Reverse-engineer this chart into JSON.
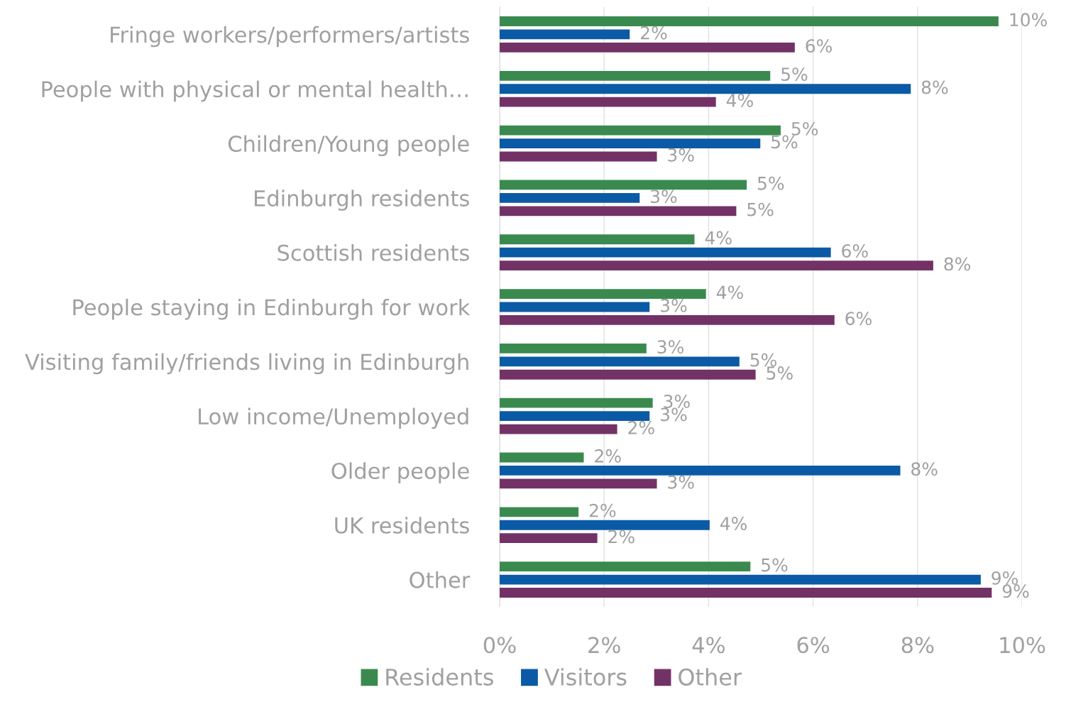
{
  "chart_data": {
    "type": "bar",
    "orientation": "horizontal",
    "categories": [
      "Fringe workers/performers/artists",
      "People with physical or mental health…",
      "Children/Young people",
      "Edinburgh residents",
      "Scottish residents",
      "People staying in Edinburgh for work",
      "Visiting family/friends living in Edinburgh",
      "Low income/Unemployed",
      "Older people",
      "UK residents",
      "Other"
    ],
    "series": [
      {
        "name": "Residents",
        "color": "#3a8a4f",
        "values": [
          9.55,
          5.18,
          5.38,
          4.73,
          3.73,
          3.95,
          2.81,
          2.93,
          1.61,
          1.51,
          4.8
        ],
        "value_labels": [
          "10%",
          "5%",
          "5%",
          "5%",
          "4%",
          "4%",
          "3%",
          "3%",
          "2%",
          "2%",
          "5%"
        ]
      },
      {
        "name": "Visitors",
        "color": "#0b5aa5",
        "values": [
          2.49,
          7.87,
          4.99,
          2.68,
          6.34,
          2.87,
          4.59,
          2.87,
          7.67,
          4.02,
          9.21
        ],
        "value_labels": [
          "2%",
          "8%",
          "5%",
          "3%",
          "6%",
          "3%",
          "5%",
          "3%",
          "8%",
          "4%",
          "9%"
        ]
      },
      {
        "name": "Other",
        "color": "#733266",
        "values": [
          5.65,
          4.14,
          3.01,
          4.53,
          8.3,
          6.41,
          4.9,
          2.25,
          3.01,
          1.87,
          9.42
        ],
        "value_labels": [
          "6%",
          "4%",
          "3%",
          "5%",
          "8%",
          "6%",
          "5%",
          "2%",
          "3%",
          "2%",
          "9%"
        ]
      }
    ],
    "xlim": [
      0,
      10
    ],
    "xticks": [
      {
        "value": 0,
        "label": "0%"
      },
      {
        "value": 2,
        "label": "2%"
      },
      {
        "value": 4,
        "label": "4%"
      },
      {
        "value": 6,
        "label": "6%"
      },
      {
        "value": 8,
        "label": "8%"
      },
      {
        "value": 10,
        "label": "10%"
      }
    ],
    "grid": "x",
    "legend": "bottom"
  }
}
